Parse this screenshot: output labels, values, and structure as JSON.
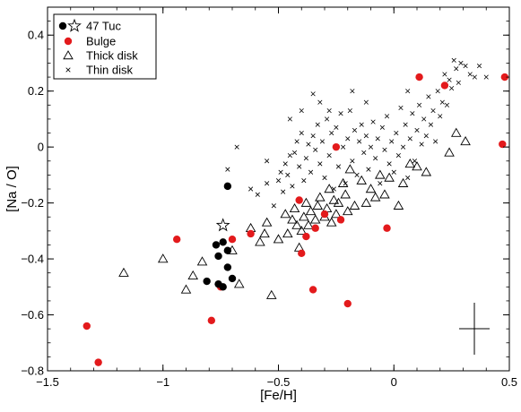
{
  "chart_data": {
    "type": "scatter",
    "xlabel": "[Fe/H]",
    "ylabel": "[Na / O]",
    "xlim": [
      -1.5,
      0.5
    ],
    "ylim": [
      -0.8,
      0.5
    ],
    "x_ticks": [
      -1.5,
      -1.0,
      -0.5,
      0.0,
      0.5
    ],
    "y_ticks": [
      -0.8,
      -0.6,
      -0.4,
      -0.2,
      0.0,
      0.2,
      0.4
    ],
    "x_tick_labels": [
      "−1.5",
      "−1",
      "−0.5",
      "0",
      "0.5"
    ],
    "y_tick_labels": [
      "−0.8",
      "−0.6",
      "−0.4",
      "−0.2",
      "0",
      "0.2",
      "0.4"
    ],
    "grid": false,
    "legend_position": "top-left",
    "series": [
      {
        "name": "47 Tuc",
        "marker": "filled-circle",
        "color": "#000000",
        "points": [
          [
            -0.72,
            -0.14
          ],
          [
            -0.77,
            -0.35
          ],
          [
            -0.74,
            -0.34
          ],
          [
            -0.72,
            -0.37
          ],
          [
            -0.76,
            -0.39
          ],
          [
            -0.72,
            -0.43
          ],
          [
            -0.81,
            -0.48
          ],
          [
            -0.76,
            -0.49
          ],
          [
            -0.74,
            -0.5
          ],
          [
            -0.7,
            -0.47
          ]
        ]
      },
      {
        "name": "47 Tuc",
        "marker": "star",
        "color": "#000000",
        "points": [
          [
            -0.74,
            -0.28
          ]
        ]
      },
      {
        "name": "Bulge",
        "marker": "filled-circle",
        "color": "#e31a1c",
        "points": [
          [
            -1.33,
            -0.64
          ],
          [
            -1.28,
            -0.77
          ],
          [
            -0.94,
            -0.33
          ],
          [
            -0.79,
            -0.62
          ],
          [
            -0.75,
            -0.5
          ],
          [
            -0.7,
            -0.33
          ],
          [
            -0.62,
            -0.31
          ],
          [
            -0.41,
            -0.19
          ],
          [
            -0.4,
            -0.38
          ],
          [
            -0.38,
            -0.32
          ],
          [
            -0.35,
            -0.51
          ],
          [
            -0.34,
            -0.29
          ],
          [
            -0.3,
            -0.24
          ],
          [
            -0.25,
            0.0
          ],
          [
            -0.23,
            -0.26
          ],
          [
            -0.2,
            -0.56
          ],
          [
            -0.03,
            -0.29
          ],
          [
            0.11,
            0.25
          ],
          [
            0.22,
            0.22
          ],
          [
            0.47,
            0.01
          ],
          [
            0.48,
            0.25
          ]
        ]
      },
      {
        "name": "Thick disk",
        "marker": "open-triangle",
        "color": "#000000",
        "points": [
          [
            -1.17,
            -0.45
          ],
          [
            -1.0,
            -0.4
          ],
          [
            -0.9,
            -0.51
          ],
          [
            -0.87,
            -0.46
          ],
          [
            -0.83,
            -0.41
          ],
          [
            -0.7,
            -0.37
          ],
          [
            -0.67,
            -0.49
          ],
          [
            -0.62,
            -0.29
          ],
          [
            -0.58,
            -0.34
          ],
          [
            -0.56,
            -0.31
          ],
          [
            -0.55,
            -0.27
          ],
          [
            -0.5,
            -0.33
          ],
          [
            -0.47,
            -0.24
          ],
          [
            -0.46,
            -0.31
          ],
          [
            -0.44,
            -0.26
          ],
          [
            -0.43,
            -0.22
          ],
          [
            -0.42,
            -0.28
          ],
          [
            -0.41,
            -0.36
          ],
          [
            -0.4,
            -0.3
          ],
          [
            -0.39,
            -0.25
          ],
          [
            -0.38,
            -0.2
          ],
          [
            -0.37,
            -0.28
          ],
          [
            -0.36,
            -0.23
          ],
          [
            -0.34,
            -0.26
          ],
          [
            -0.33,
            -0.21
          ],
          [
            -0.32,
            -0.18
          ],
          [
            -0.3,
            -0.25
          ],
          [
            -0.29,
            -0.22
          ],
          [
            -0.28,
            -0.15
          ],
          [
            -0.27,
            -0.27
          ],
          [
            -0.26,
            -0.19
          ],
          [
            -0.25,
            -0.24
          ],
          [
            -0.24,
            -0.2
          ],
          [
            -0.22,
            -0.13
          ],
          [
            -0.21,
            -0.17
          ],
          [
            -0.2,
            -0.23
          ],
          [
            -0.19,
            -0.08
          ],
          [
            -0.17,
            -0.21
          ],
          [
            -0.14,
            -0.12
          ],
          [
            -0.12,
            -0.2
          ],
          [
            -0.1,
            -0.15
          ],
          [
            -0.08,
            -0.18
          ],
          [
            -0.06,
            -0.1
          ],
          [
            -0.04,
            -0.17
          ],
          [
            -0.02,
            -0.11
          ],
          [
            0.02,
            -0.21
          ],
          [
            0.04,
            -0.13
          ],
          [
            0.07,
            -0.06
          ],
          [
            0.1,
            -0.07
          ],
          [
            0.14,
            -0.09
          ],
          [
            0.24,
            -0.02
          ],
          [
            0.27,
            0.05
          ],
          [
            0.31,
            0.02
          ],
          [
            -0.53,
            -0.53
          ]
        ]
      },
      {
        "name": "Thin disk",
        "marker": "x",
        "color": "#000000",
        "points": [
          [
            -0.72,
            -0.08
          ],
          [
            -0.68,
            0.0
          ],
          [
            -0.62,
            -0.15
          ],
          [
            -0.59,
            -0.17
          ],
          [
            -0.55,
            -0.13
          ],
          [
            -0.52,
            -0.21
          ],
          [
            -0.5,
            -0.12
          ],
          [
            -0.49,
            -0.09
          ],
          [
            -0.48,
            -0.16
          ],
          [
            -0.47,
            -0.06
          ],
          [
            -0.46,
            -0.1
          ],
          [
            -0.45,
            -0.03
          ],
          [
            -0.44,
            -0.14
          ],
          [
            -0.43,
            -0.02
          ],
          [
            -0.42,
            0.02
          ],
          [
            -0.41,
            -0.07
          ],
          [
            -0.4,
            0.05
          ],
          [
            -0.39,
            -0.12
          ],
          [
            -0.38,
            -0.04
          ],
          [
            -0.37,
            0.01
          ],
          [
            -0.36,
            -0.09
          ],
          [
            -0.35,
            0.04
          ],
          [
            -0.34,
            -0.01
          ],
          [
            -0.33,
            0.08
          ],
          [
            -0.32,
            -0.06
          ],
          [
            -0.31,
            0.02
          ],
          [
            -0.3,
            -0.11
          ],
          [
            -0.29,
            0.1
          ],
          [
            -0.28,
            -0.03
          ],
          [
            -0.27,
            0.05
          ],
          [
            -0.26,
            -0.15
          ],
          [
            -0.25,
            0.07
          ],
          [
            -0.24,
            -0.07
          ],
          [
            -0.23,
            0.12
          ],
          [
            -0.22,
            0.0
          ],
          [
            -0.21,
            -0.13
          ],
          [
            -0.2,
            0.03
          ],
          [
            -0.19,
            0.13
          ],
          [
            -0.18,
            -0.05
          ],
          [
            -0.17,
            0.06
          ],
          [
            -0.16,
            -0.1
          ],
          [
            -0.15,
            0.02
          ],
          [
            -0.14,
            0.08
          ],
          [
            -0.13,
            -0.02
          ],
          [
            -0.12,
            0.04
          ],
          [
            -0.11,
            -0.08
          ],
          [
            -0.1,
            0.0
          ],
          [
            -0.09,
            0.09
          ],
          [
            -0.08,
            -0.04
          ],
          [
            -0.07,
            0.03
          ],
          [
            -0.06,
            -0.13
          ],
          [
            -0.05,
            0.07
          ],
          [
            -0.04,
            -0.01
          ],
          [
            -0.03,
            0.11
          ],
          [
            -0.02,
            -0.06
          ],
          [
            -0.01,
            0.02
          ],
          [
            0.0,
            -0.09
          ],
          [
            0.01,
            0.05
          ],
          [
            0.02,
            -0.03
          ],
          [
            0.03,
            0.14
          ],
          [
            0.04,
            0.0
          ],
          [
            0.05,
            0.08
          ],
          [
            0.06,
            -0.11
          ],
          [
            0.07,
            0.03
          ],
          [
            0.08,
            0.12
          ],
          [
            0.09,
            -0.05
          ],
          [
            0.1,
            0.06
          ],
          [
            0.11,
            0.15
          ],
          [
            0.12,
            0.01
          ],
          [
            0.13,
            0.1
          ],
          [
            0.14,
            0.04
          ],
          [
            0.15,
            0.18
          ],
          [
            0.16,
            0.08
          ],
          [
            0.17,
            0.13
          ],
          [
            0.18,
            0.02
          ],
          [
            0.19,
            0.2
          ],
          [
            0.2,
            0.11
          ],
          [
            0.21,
            0.16
          ],
          [
            0.22,
            0.26
          ],
          [
            0.23,
            0.15
          ],
          [
            0.24,
            0.24
          ],
          [
            0.25,
            0.21
          ],
          [
            0.26,
            0.31
          ],
          [
            0.27,
            0.28
          ],
          [
            0.28,
            0.23
          ],
          [
            0.29,
            0.3
          ],
          [
            0.31,
            0.29
          ],
          [
            0.33,
            0.26
          ],
          [
            0.35,
            0.25
          ],
          [
            0.37,
            0.29
          ],
          [
            0.4,
            0.25
          ],
          [
            -0.35,
            0.19
          ],
          [
            -0.4,
            0.13
          ],
          [
            -0.45,
            0.1
          ],
          [
            -0.28,
            0.13
          ],
          [
            -0.18,
            0.2
          ],
          [
            -0.12,
            0.16
          ],
          [
            0.06,
            0.2
          ],
          [
            -0.55,
            -0.05
          ],
          [
            -0.32,
            0.16
          ]
        ]
      }
    ]
  }
}
